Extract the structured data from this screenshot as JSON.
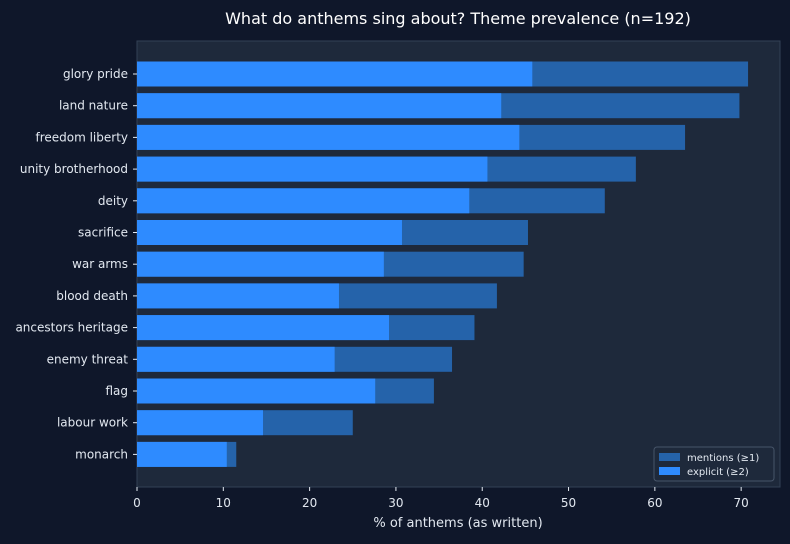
{
  "chart_data": {
    "type": "bar",
    "orientation": "horizontal",
    "title": "What do anthems sing about? Theme prevalence (n=192)",
    "xlabel": "% of anthems (as written)",
    "ylabel": "",
    "xlim": [
      0,
      74.5
    ],
    "xticks": [
      0,
      10,
      20,
      30,
      40,
      50,
      60,
      70
    ],
    "grid": false,
    "legend_position": "lower-right",
    "categories": [
      "glory pride",
      "land nature",
      "freedom liberty",
      "unity brotherhood",
      "deity",
      "sacrifice",
      "war arms",
      "blood death",
      "ancestors heritage",
      "enemy threat",
      "flag",
      "labour work",
      "monarch"
    ],
    "series": [
      {
        "name": "mentions (≥1)",
        "color": "#2563aa",
        "values": [
          70.8,
          69.8,
          63.5,
          57.8,
          54.2,
          45.3,
          44.8,
          41.7,
          39.1,
          36.5,
          34.4,
          25.0,
          11.5
        ]
      },
      {
        "name": "explicit (≥2)",
        "color": "#2e8bff",
        "values": [
          45.8,
          42.2,
          44.3,
          40.6,
          38.5,
          30.7,
          28.6,
          23.4,
          29.2,
          22.9,
          27.6,
          14.6,
          10.4
        ]
      }
    ],
    "colors": {
      "figure_background": "#0f172a",
      "plot_background": "#1e293b",
      "text": "#e2e8f0"
    }
  }
}
